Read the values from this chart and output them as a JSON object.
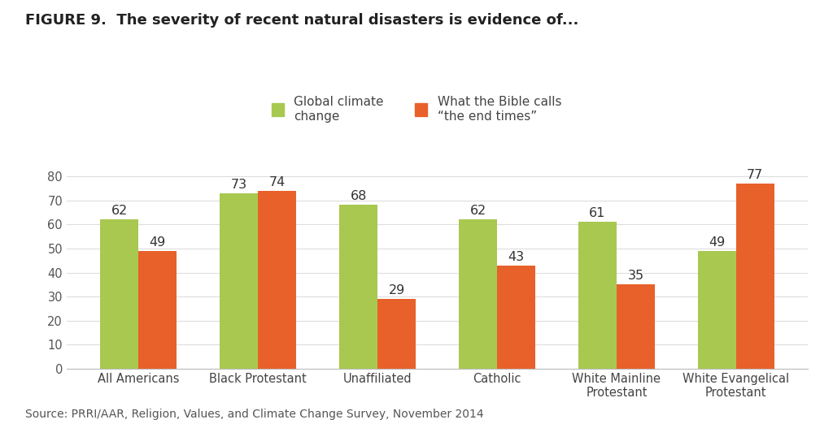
{
  "title": "FIGURE 9.  The severity of recent natural disasters is evidence of...",
  "categories": [
    "All Americans",
    "Black Protestant",
    "Unaffiliated",
    "Catholic",
    "White Mainline\nProtestant",
    "White Evangelical\nProtestant"
  ],
  "green_values": [
    62,
    73,
    68,
    62,
    61,
    49
  ],
  "orange_values": [
    49,
    74,
    29,
    43,
    35,
    77
  ],
  "green_color": "#a8c850",
  "orange_color": "#e8612a",
  "legend_green": "Global climate\nchange",
  "legend_orange": "What the Bible calls\n“the end times”",
  "source": "Source: PRRI/AAR, Religion, Values, and Climate Change Survey, November 2014",
  "ylim": [
    0,
    88
  ],
  "yticks": [
    0,
    10,
    20,
    30,
    40,
    50,
    60,
    70,
    80
  ],
  "bar_width": 0.32,
  "title_fontsize": 13,
  "legend_fontsize": 11,
  "tick_fontsize": 10.5,
  "source_fontsize": 10,
  "background_color": "#ffffff",
  "value_fontsize": 11.5
}
